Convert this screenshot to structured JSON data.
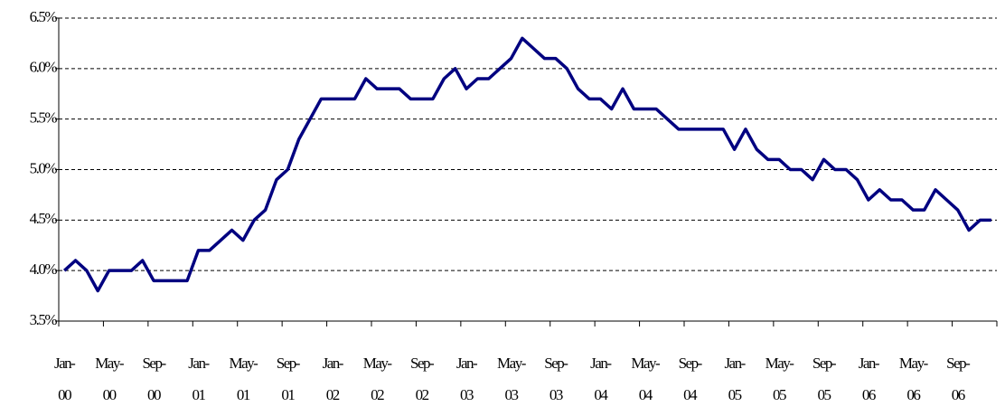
{
  "chart_data": {
    "type": "line",
    "categories": [
      "Jan-00",
      null,
      null,
      null,
      "May-00",
      null,
      null,
      null,
      "Sep-00",
      null,
      null,
      null,
      "Jan-01",
      null,
      null,
      null,
      "May-01",
      null,
      null,
      null,
      "Sep-01",
      null,
      null,
      null,
      "Jan-02",
      null,
      null,
      null,
      "May-02",
      null,
      null,
      null,
      "Sep-02",
      null,
      null,
      null,
      "Jan-03",
      null,
      null,
      null,
      "May-03",
      null,
      null,
      null,
      "Sep-03",
      null,
      null,
      null,
      "Jan-04",
      null,
      null,
      null,
      "May-04",
      null,
      null,
      null,
      "Sep-04",
      null,
      null,
      null,
      "Jan-05",
      null,
      null,
      null,
      "May-05",
      null,
      null,
      null,
      "Sep-05",
      null,
      null,
      null,
      "Jan-06",
      null,
      null,
      null,
      "May-06",
      null,
      null,
      null,
      "Sep-06",
      null,
      null,
      null
    ],
    "series": [
      {
        "color": "#000080",
        "values": [
          4.0,
          4.1,
          4.0,
          3.8,
          4.0,
          4.0,
          4.0,
          4.1,
          3.9,
          3.9,
          3.9,
          3.9,
          4.2,
          4.2,
          4.3,
          4.4,
          4.3,
          4.5,
          4.6,
          4.9,
          5.0,
          5.3,
          5.5,
          5.7,
          5.7,
          5.7,
          5.7,
          5.9,
          5.8,
          5.8,
          5.8,
          5.7,
          5.7,
          5.7,
          5.9,
          6.0,
          5.8,
          5.9,
          5.9,
          6.0,
          6.1,
          6.3,
          6.2,
          6.1,
          6.1,
          6.0,
          5.8,
          5.7,
          5.7,
          5.6,
          5.8,
          5.6,
          5.6,
          5.6,
          5.5,
          5.4,
          5.4,
          5.4,
          5.4,
          5.4,
          5.2,
          5.4,
          5.2,
          5.1,
          5.1,
          5.0,
          5.0,
          4.9,
          5.1,
          5.0,
          5.0,
          4.9,
          4.7,
          4.8,
          4.7,
          4.7,
          4.6,
          4.6,
          4.8,
          4.7,
          4.6,
          4.4,
          4.5,
          4.5
        ]
      }
    ],
    "ylim": [
      3.5,
      6.5
    ],
    "yticks": [
      {
        "value": 3.5,
        "label": "3.5%"
      },
      {
        "value": 4.0,
        "label": "4.0%"
      },
      {
        "value": 4.5,
        "label": "4.5%"
      },
      {
        "value": 5.0,
        "label": "5.0%"
      },
      {
        "value": 5.5,
        "label": "5.5%"
      },
      {
        "value": 6.0,
        "label": "6.0%"
      },
      {
        "value": 6.5,
        "label": "6.5%"
      }
    ],
    "grid": true
  }
}
